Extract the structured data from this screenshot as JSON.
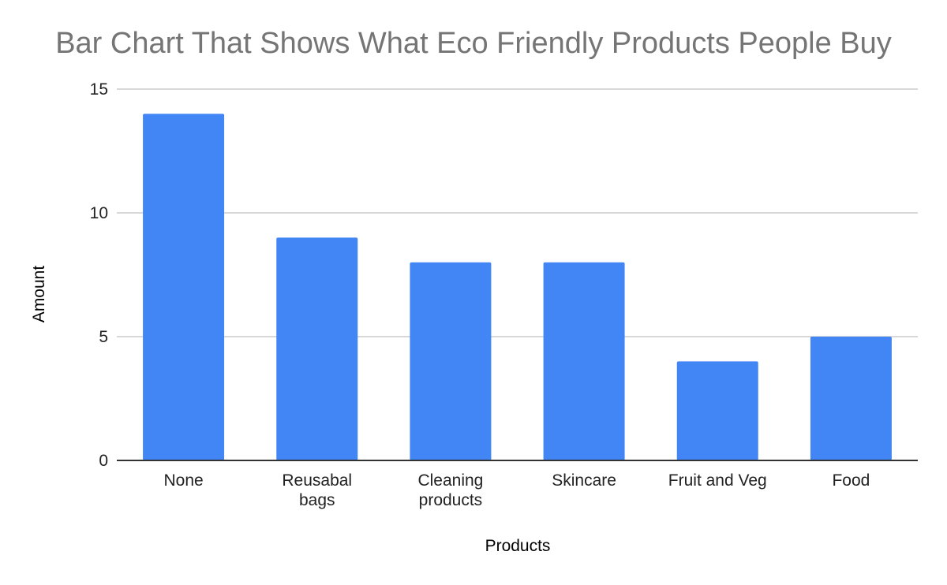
{
  "chart_data": {
    "type": "bar",
    "title": "Bar Chart That Shows What Eco Friendly Products People Buy",
    "xlabel": "Products",
    "ylabel": "Amount",
    "categories": [
      "None",
      "Reusabal bags",
      "Cleaning products",
      "Skincare",
      "Fruit and Veg",
      "Food"
    ],
    "category_label_lines": [
      [
        "None"
      ],
      [
        "Reusabal",
        "bags"
      ],
      [
        "Cleaning",
        "products"
      ],
      [
        "Skincare"
      ],
      [
        "Fruit and Veg"
      ],
      [
        "Food"
      ]
    ],
    "values": [
      14,
      9,
      8,
      8,
      4,
      5
    ],
    "ylim": [
      0,
      15
    ],
    "yticks": [
      0,
      5,
      10,
      15
    ],
    "grid": true,
    "legend": "none",
    "colors": {
      "bar": "#4285f4",
      "grid": "#cccccc",
      "axis": "#333333",
      "title": "#757575"
    }
  }
}
